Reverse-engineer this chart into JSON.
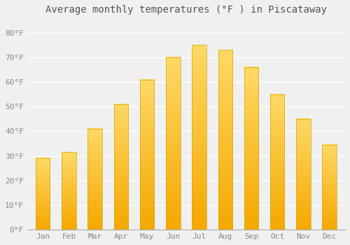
{
  "title": "Average monthly temperatures (°F ) in Piscataway",
  "months": [
    "Jan",
    "Feb",
    "Mar",
    "Apr",
    "May",
    "Jun",
    "Jul",
    "Aug",
    "Sep",
    "Oct",
    "Nov",
    "Dec"
  ],
  "values": [
    29,
    31.5,
    41,
    51,
    61,
    70,
    75,
    73,
    66,
    55,
    45,
    34.5
  ],
  "bar_color_bottom": "#F5A800",
  "bar_color_top": "#FFD966",
  "background_color": "#f0f0f0",
  "grid_color": "#ffffff",
  "yticks": [
    0,
    10,
    20,
    30,
    40,
    50,
    60,
    70,
    80
  ],
  "ytick_labels": [
    "0°F",
    "10°F",
    "20°F",
    "30°F",
    "40°F",
    "50°F",
    "60°F",
    "70°F",
    "80°F"
  ],
  "ylim": [
    0,
    85
  ],
  "title_fontsize": 10,
  "tick_fontsize": 8,
  "font_family": "monospace"
}
